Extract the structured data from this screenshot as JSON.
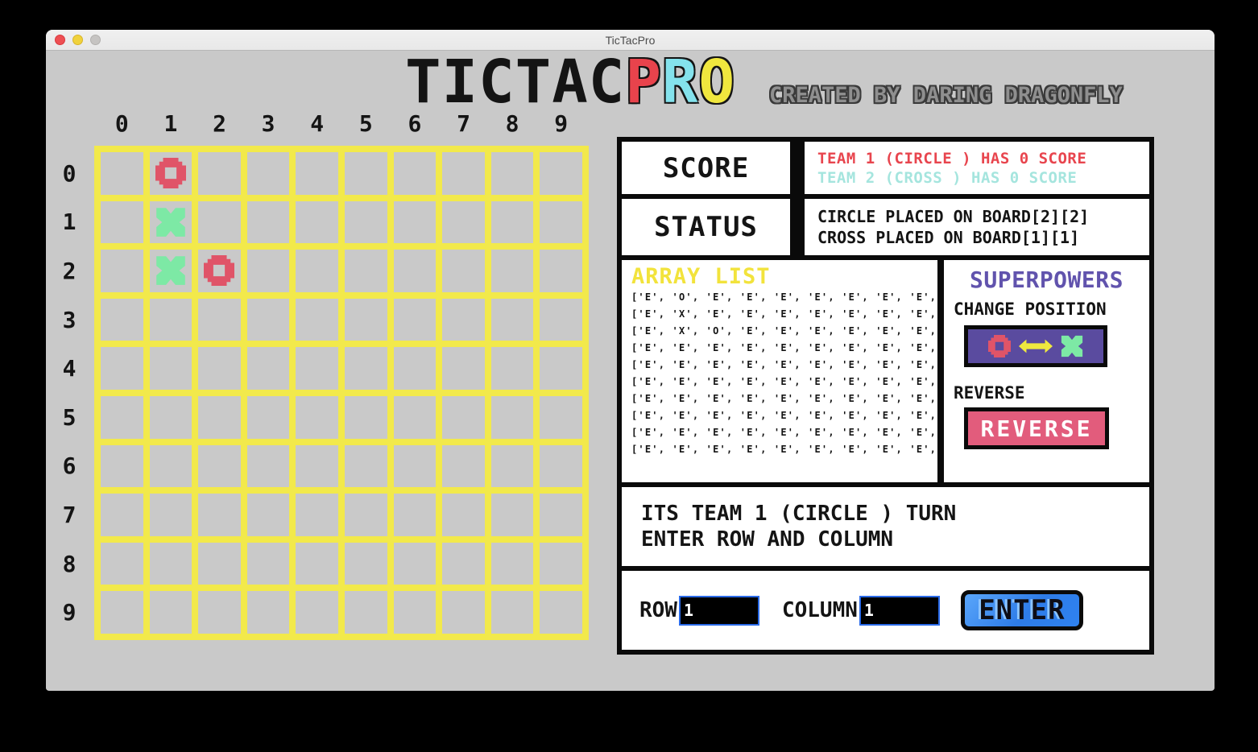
{
  "window": {
    "title": "TicTacPro"
  },
  "header": {
    "title_tictac": "TICTAC",
    "title_p": "P",
    "title_r": "R",
    "title_o": "O",
    "credit": "CREATED BY DARING DRAGONFLY"
  },
  "board": {
    "col_headers": [
      "0",
      "1",
      "2",
      "3",
      "4",
      "5",
      "6",
      "7",
      "8",
      "9"
    ],
    "row_headers": [
      "0",
      "1",
      "2",
      "3",
      "4",
      "5",
      "6",
      "7",
      "8",
      "9"
    ],
    "cells": [
      [
        "E",
        "O",
        "E",
        "E",
        "E",
        "E",
        "E",
        "E",
        "E",
        "E"
      ],
      [
        "E",
        "X",
        "E",
        "E",
        "E",
        "E",
        "E",
        "E",
        "E",
        "E"
      ],
      [
        "E",
        "X",
        "O",
        "E",
        "E",
        "E",
        "E",
        "E",
        "E",
        "E"
      ],
      [
        "E",
        "E",
        "E",
        "E",
        "E",
        "E",
        "E",
        "E",
        "E",
        "E"
      ],
      [
        "E",
        "E",
        "E",
        "E",
        "E",
        "E",
        "E",
        "E",
        "E",
        "E"
      ],
      [
        "E",
        "E",
        "E",
        "E",
        "E",
        "E",
        "E",
        "E",
        "E",
        "E"
      ],
      [
        "E",
        "E",
        "E",
        "E",
        "E",
        "E",
        "E",
        "E",
        "E",
        "E"
      ],
      [
        "E",
        "E",
        "E",
        "E",
        "E",
        "E",
        "E",
        "E",
        "E",
        "E"
      ],
      [
        "E",
        "E",
        "E",
        "E",
        "E",
        "E",
        "E",
        "E",
        "E",
        "E"
      ],
      [
        "E",
        "E",
        "E",
        "E",
        "E",
        "E",
        "E",
        "E",
        "E",
        "E"
      ]
    ]
  },
  "score_panel": {
    "label": "SCORE",
    "team1": "TEAM 1 (CIRCLE ) HAS 0 SCORE",
    "team2": "TEAM 2 (CROSS ) HAS 0 SCORE"
  },
  "status_panel": {
    "label": "STATUS",
    "lines": [
      "CIRCLE PLACED ON BOARD[2][2]",
      "CROSS PLACED ON BOARD[1][1]"
    ]
  },
  "array_list": {
    "title": "ARRAY LIST",
    "rows": [
      "['E', 'O', 'E', 'E', 'E', 'E', 'E', 'E', 'E', 'E']",
      "['E', 'X', 'E', 'E', 'E', 'E', 'E', 'E', 'E', 'E']",
      "['E', 'X', 'O', 'E', 'E', 'E', 'E', 'E', 'E', 'E']",
      "['E', 'E', 'E', 'E', 'E', 'E', 'E', 'E', 'E', 'E']",
      "['E', 'E', 'E', 'E', 'E', 'E', 'E', 'E', 'E', 'E']",
      "['E', 'E', 'E', 'E', 'E', 'E', 'E', 'E', 'E', 'E']",
      "['E', 'E', 'E', 'E', 'E', 'E', 'E', 'E', 'E', 'E']",
      "['E', 'E', 'E', 'E', 'E', 'E', 'E', 'E', 'E', 'E']",
      "['E', 'E', 'E', 'E', 'E', 'E', 'E', 'E', 'E', 'E']",
      "['E', 'E', 'E', 'E', 'E', 'E', 'E', 'E', 'E', 'E']"
    ]
  },
  "superpowers": {
    "title": "SUPERPOWERS",
    "change_position_label": "CHANGE POSITION",
    "reverse_label": "REVERSE",
    "reverse_button_label": "REVERSE"
  },
  "turn_panel": {
    "line1": "ITS TEAM 1 (CIRCLE ) TURN",
    "line2": "ENTER ROW AND COLUMN"
  },
  "input_panel": {
    "row_label": "ROW",
    "row_value": "1",
    "column_label": "COLUMN",
    "column_value": "1",
    "enter_button_label": "ENTER"
  },
  "colors": {
    "grid_yellow": "#f2e94b",
    "circle_red": "#e05468",
    "cross_green": "#7de9a5",
    "team1_red": "#e8454e",
    "team2_cyan": "#a5e5de",
    "array_title_yellow": "#f2e33c",
    "superpowers_purple": "#6153ad",
    "change_button_purple": "#5a4b9f",
    "arrow_yellow": "#efe93f",
    "reverse_pink": "#e25c7c",
    "enter_blue": "#2f82f0",
    "input_border_blue": "#2a6ae8"
  }
}
